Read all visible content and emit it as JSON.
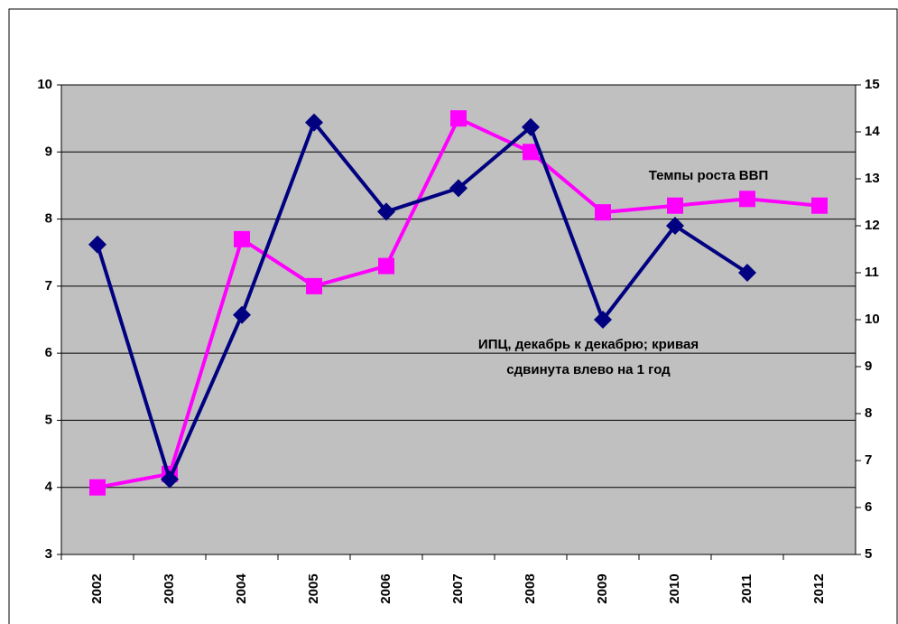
{
  "chart_data": {
    "type": "line",
    "categories": [
      "2002",
      "2003",
      "2004",
      "2005",
      "2006",
      "2007",
      "2008",
      "2009",
      "2010",
      "2011",
      "2012"
    ],
    "series": [
      {
        "name": "Темпы роста ВВП",
        "color": "#ff00ff",
        "marker": "square",
        "axis": "y",
        "values": [
          4.0,
          4.2,
          7.7,
          7.0,
          7.3,
          9.5,
          9.0,
          8.1,
          8.2,
          8.3,
          8.2
        ]
      },
      {
        "name": "ИПЦ, декабрь к декабрю; кривая сдвинута влево на 1 год",
        "color": "#000080",
        "marker": "diamond",
        "axis": "y2",
        "values": [
          11.6,
          6.6,
          10.1,
          14.2,
          12.3,
          12.8,
          14.1,
          10.0,
          12.0,
          11.0,
          null
        ]
      }
    ],
    "annotations": [
      "Темпы роста ВВП",
      "ИПЦ, декабрь к декабрю; кривая",
      "сдвинута влево на 1 год"
    ],
    "ylim": [
      3,
      10
    ],
    "yticks": [
      3,
      4,
      5,
      6,
      7,
      8,
      9,
      10
    ],
    "y2lim": [
      5,
      15
    ],
    "y2ticks": [
      5,
      6,
      7,
      8,
      9,
      10,
      11,
      12,
      13,
      14,
      15
    ],
    "grid": true
  }
}
